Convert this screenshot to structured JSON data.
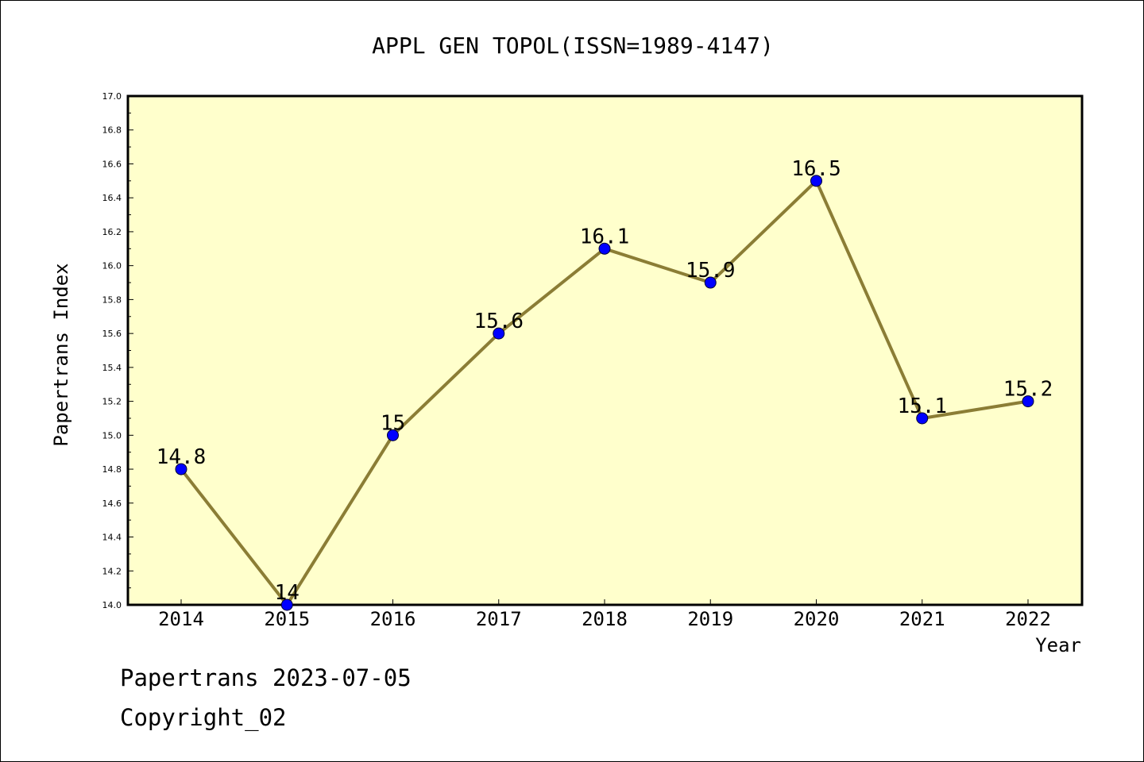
{
  "chart_data": {
    "type": "line",
    "title": "APPL GEN TOPOL(ISSN=1989-4147)",
    "xlabel": "Year",
    "ylabel": "Papertrans Index",
    "categories": [
      "2014",
      "2015",
      "2016",
      "2017",
      "2018",
      "2019",
      "2020",
      "2021",
      "2022"
    ],
    "values": [
      14.8,
      14.0,
      15.0,
      15.6,
      16.1,
      15.9,
      16.5,
      15.1,
      15.2
    ],
    "data_labels": [
      "14.8",
      "14",
      "15",
      "15.6",
      "16.1",
      "15.9",
      "16.5",
      "15.1",
      "15.2"
    ],
    "ylim": [
      14.0,
      17.0
    ],
    "yticks": [
      "14.0",
      "14.2",
      "14.4",
      "14.6",
      "14.8",
      "15.0",
      "15.2",
      "15.4",
      "15.6",
      "15.8",
      "16.0",
      "16.2",
      "16.4",
      "16.6",
      "16.8",
      "17.0"
    ],
    "grid": false,
    "legend": "none",
    "colors": {
      "line": "#8b7d35",
      "marker": "#0000ff",
      "plot_background": "#ffffcc"
    }
  },
  "footer": {
    "date_text": "Papertrans 2023-07-05",
    "copyright_text": "Copyright_02"
  }
}
